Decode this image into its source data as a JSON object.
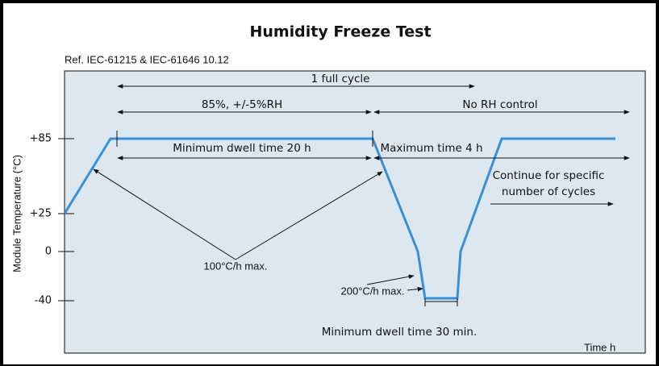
{
  "header": {
    "title": "Humidity Freeze Test",
    "reference": "Ref. IEC-61215 & IEC-61646   10.12"
  },
  "axes": {
    "y_label": "Module Temperature (°C)",
    "x_label": "Time h",
    "y_ticks": [
      "+85",
      "+25",
      "0",
      "-40"
    ]
  },
  "annotations": {
    "full_cycle": "1 full cycle",
    "humidity": "85%, +/-5%RH",
    "no_rh": "No RH control",
    "min_dwell_20": "Minimum dwell time 20 h",
    "max_time_4": "Maximum time 4 h",
    "continue_1": "Continue for specific",
    "continue_2": "number of cycles",
    "ramp_100": "100°C/h max.",
    "ramp_200": "200°C/h max.",
    "min_dwell_30": "Minimum dwell time 30 min."
  }
}
